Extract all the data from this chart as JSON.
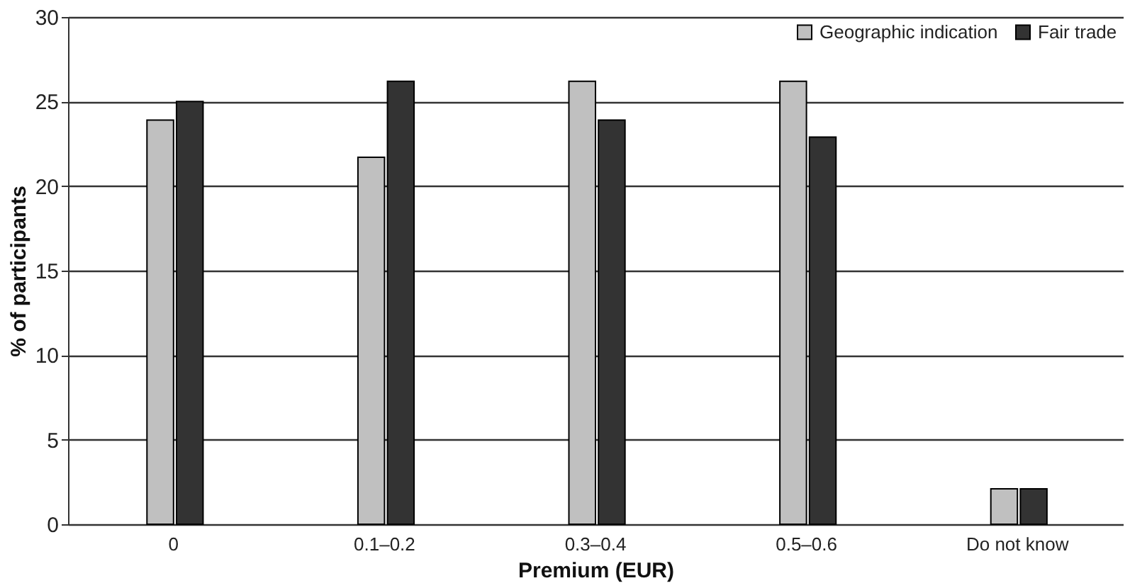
{
  "chart_data": {
    "type": "bar",
    "xlabel": "Premium (EUR)",
    "ylabel": "% of participants",
    "categories": [
      "0",
      "0.1–0.2",
      "0.3–0.4",
      "0.5–0.6",
      "Do not know"
    ],
    "series": [
      {
        "name": "Geographic indication",
        "color": "#c0c0c0",
        "values": [
          23.9,
          21.7,
          26.2,
          26.2,
          2.1
        ]
      },
      {
        "name": "Fair trade",
        "color": "#333333",
        "values": [
          25,
          26.2,
          23.9,
          22.9,
          2.1
        ]
      }
    ],
    "ylim": [
      0,
      30
    ],
    "yticks": [
      0,
      5,
      10,
      15,
      20,
      25,
      30
    ],
    "grid": "y",
    "legend": "top right"
  }
}
